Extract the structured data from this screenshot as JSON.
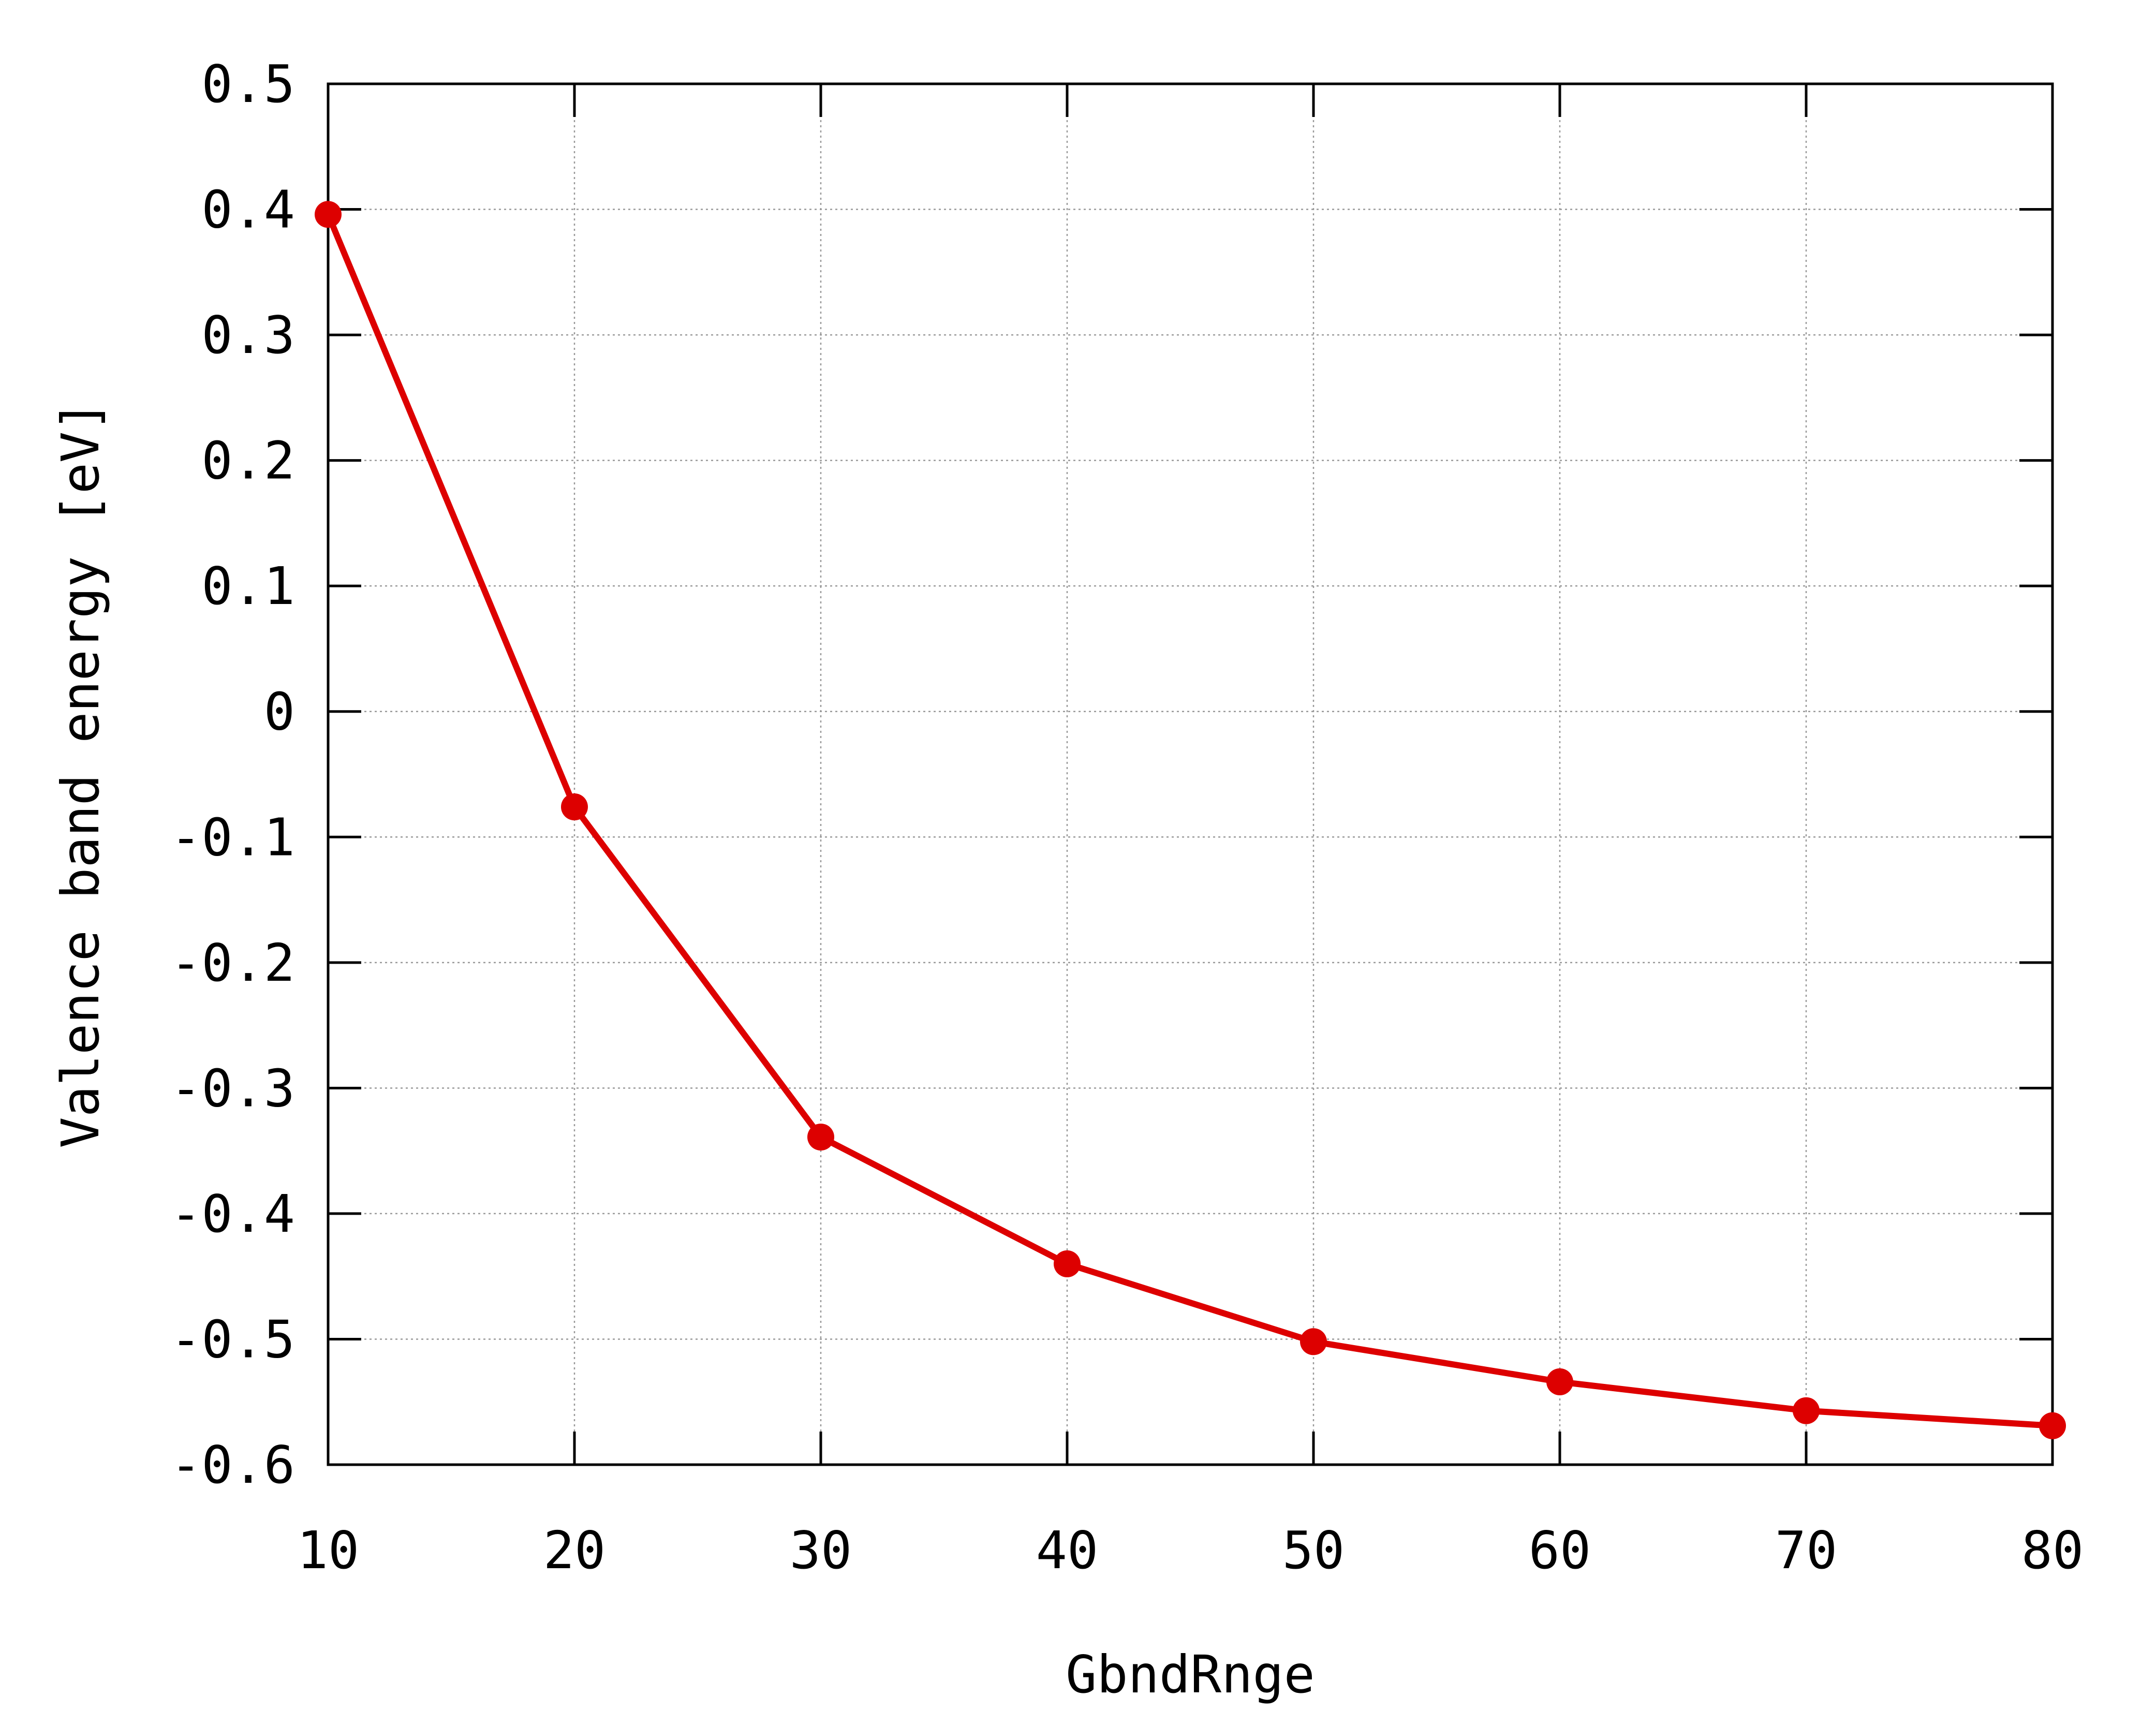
{
  "chart_data": {
    "type": "line",
    "xlabel": "GbndRnge",
    "ylabel": "Valence band energy [eV]",
    "xlim": [
      10,
      80
    ],
    "ylim": [
      -0.6,
      0.5
    ],
    "xticks": [
      "10",
      "20",
      "30",
      "40",
      "50",
      "60",
      "70",
      "80"
    ],
    "yticks": [
      "0.5",
      "0.4",
      "0.3",
      "0.2",
      "0.1",
      "0",
      "-0.1",
      "-0.2",
      "-0.3",
      "-0.4",
      "-0.5",
      "-0.6"
    ],
    "grid": true,
    "series": [
      {
        "color": "#dd0000",
        "marker": "circle",
        "x": [
          10,
          20,
          30,
          40,
          50,
          60,
          70,
          80
        ],
        "y": [
          0.396,
          -0.076,
          -0.339,
          -0.44,
          -0.502,
          -0.534,
          -0.557,
          -0.569
        ]
      }
    ]
  }
}
